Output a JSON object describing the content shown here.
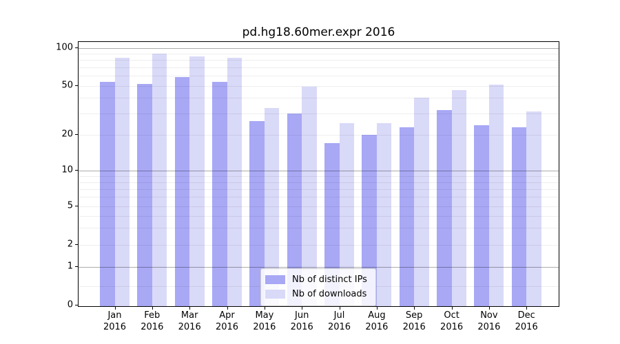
{
  "title": "pd.hg18.60mer.expr 2016",
  "chart_data": {
    "type": "bar",
    "title": "pd.hg18.60mer.expr 2016",
    "categories": [
      "Jan",
      "Feb",
      "Mar",
      "Apr",
      "May",
      "Jun",
      "Jul",
      "Aug",
      "Sep",
      "Oct",
      "Nov",
      "Dec"
    ],
    "year": "2016",
    "series": [
      {
        "name": "Nb of distinct IPs",
        "color": "#a8a8f5",
        "values": [
          54,
          52,
          59,
          54,
          26,
          30,
          17,
          20,
          23,
          32,
          24,
          23
        ]
      },
      {
        "name": "Nb of downloads",
        "color": "#d9d9f8",
        "values": [
          83,
          90,
          86,
          83,
          33,
          49,
          25,
          25,
          40,
          46,
          51,
          31
        ]
      }
    ],
    "xlabel": "",
    "ylabel": "",
    "yscale": "log-like",
    "ylim": [
      0,
      100
    ],
    "yticks": [
      0,
      1,
      2,
      5,
      10,
      20,
      50,
      100
    ],
    "major_gridlines": [
      1,
      10,
      100
    ],
    "minor_gridlines": [
      0.5,
      3,
      4,
      6,
      7,
      8,
      9,
      30,
      40,
      60,
      70,
      80,
      90
    ],
    "legend": {
      "position": "bottom-center"
    },
    "grid": true
  }
}
